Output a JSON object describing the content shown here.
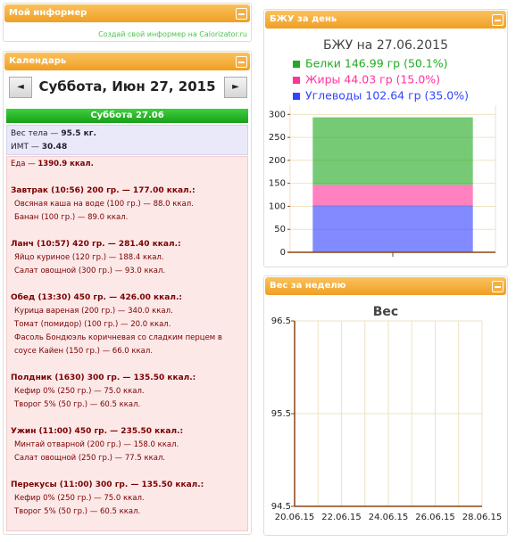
{
  "panels": {
    "informer": {
      "title": "Мой информер",
      "link": "Создай свой информер на Calorizator.ru"
    },
    "calendar": {
      "title": "Календарь",
      "prev": "◄",
      "next": "►",
      "date": "Суббота, Июн 27, 2015",
      "day_header": "Суббота 27.06",
      "weight": {
        "label": "Вес тела —",
        "value": "95.5 кг."
      },
      "bmi": {
        "label": "ИМТ —",
        "value": "30.48"
      },
      "food": {
        "label": "Еда —",
        "value": "1390.9 ккал."
      },
      "meals": [
        {
          "title": "Завтрак (10:56) 200 гр. — 177.00 ккал.:",
          "items": [
            "Овсяная каша на воде (100 гр.) — 88.0 ккал.",
            "Банан (100 гр.) — 89.0 ккал."
          ]
        },
        {
          "title": "Ланч (10:57) 420 гр. — 281.40 ккал.:",
          "items": [
            "Яйцо куриное (120 гр.) — 188.4 ккал.",
            "Салат овощной (300 гр.) — 93.0 ккал."
          ]
        },
        {
          "title": "Обед (13:30) 450 гр. — 426.00 ккал.:",
          "items": [
            "Курица вареная (200 гр.) — 340.0 ккал.",
            "Томат (помидор) (100 гр.) — 20.0 ккал.",
            "Фасоль Бондюэль коричневая со сладким перцем в соусе Кайен (150 гр.) — 66.0 ккал."
          ]
        },
        {
          "title": "Полдник (1630) 300 гр. — 135.50 ккал.:",
          "items": [
            "Кефир 0% (250 гр.) — 75.0 ккал.",
            "Творог 5% (50 гр.) — 60.5 ккал."
          ]
        },
        {
          "title": "Ужин (11:00) 450 гр. — 235.50 ккал.:",
          "items": [
            "Минтай отварной (200 гр.) — 158.0 ккал.",
            "Салат овощной (250 гр.) — 77.5 ккал."
          ]
        },
        {
          "title": "Перекусы (11:00) 300 гр. — 135.50 ккал.:",
          "items": [
            "Кефир 0% (250 гр.) — 75.0 ккал.",
            "Творог 5% (50 гр.) — 60.5 ккал."
          ]
        }
      ]
    },
    "bju": {
      "title": "БЖУ за день"
    },
    "week": {
      "title": "Вес за неделю"
    }
  },
  "chart_data": [
    {
      "type": "bar",
      "stacked": true,
      "title": "БЖУ на 27.06.2015",
      "categories": [
        null
      ],
      "series": [
        {
          "name": "Углеводы 102.64 гр (35.0%)",
          "color": "#3344ff",
          "values": [
            102.64
          ]
        },
        {
          "name": "Жиры 44.03 гр (15.0%)",
          "color": "#ff3399",
          "values": [
            44.03
          ]
        },
        {
          "name": "Белки 146.99 гр (50.1%)",
          "color": "#22aa22",
          "values": [
            146.99
          ]
        }
      ],
      "ylim": [
        0,
        320
      ],
      "yticks": [
        0,
        50,
        100,
        150,
        200,
        250,
        300
      ],
      "grid": true
    },
    {
      "type": "line",
      "title": "Вес",
      "categories": [
        "20.06.15",
        "22.06.15",
        "24.06.15",
        "26.06.15",
        "28.06.15"
      ],
      "series": [],
      "ylim": [
        94.5,
        96.5
      ],
      "yticks": [
        94.5,
        95.5,
        96.5
      ],
      "grid": true
    }
  ]
}
